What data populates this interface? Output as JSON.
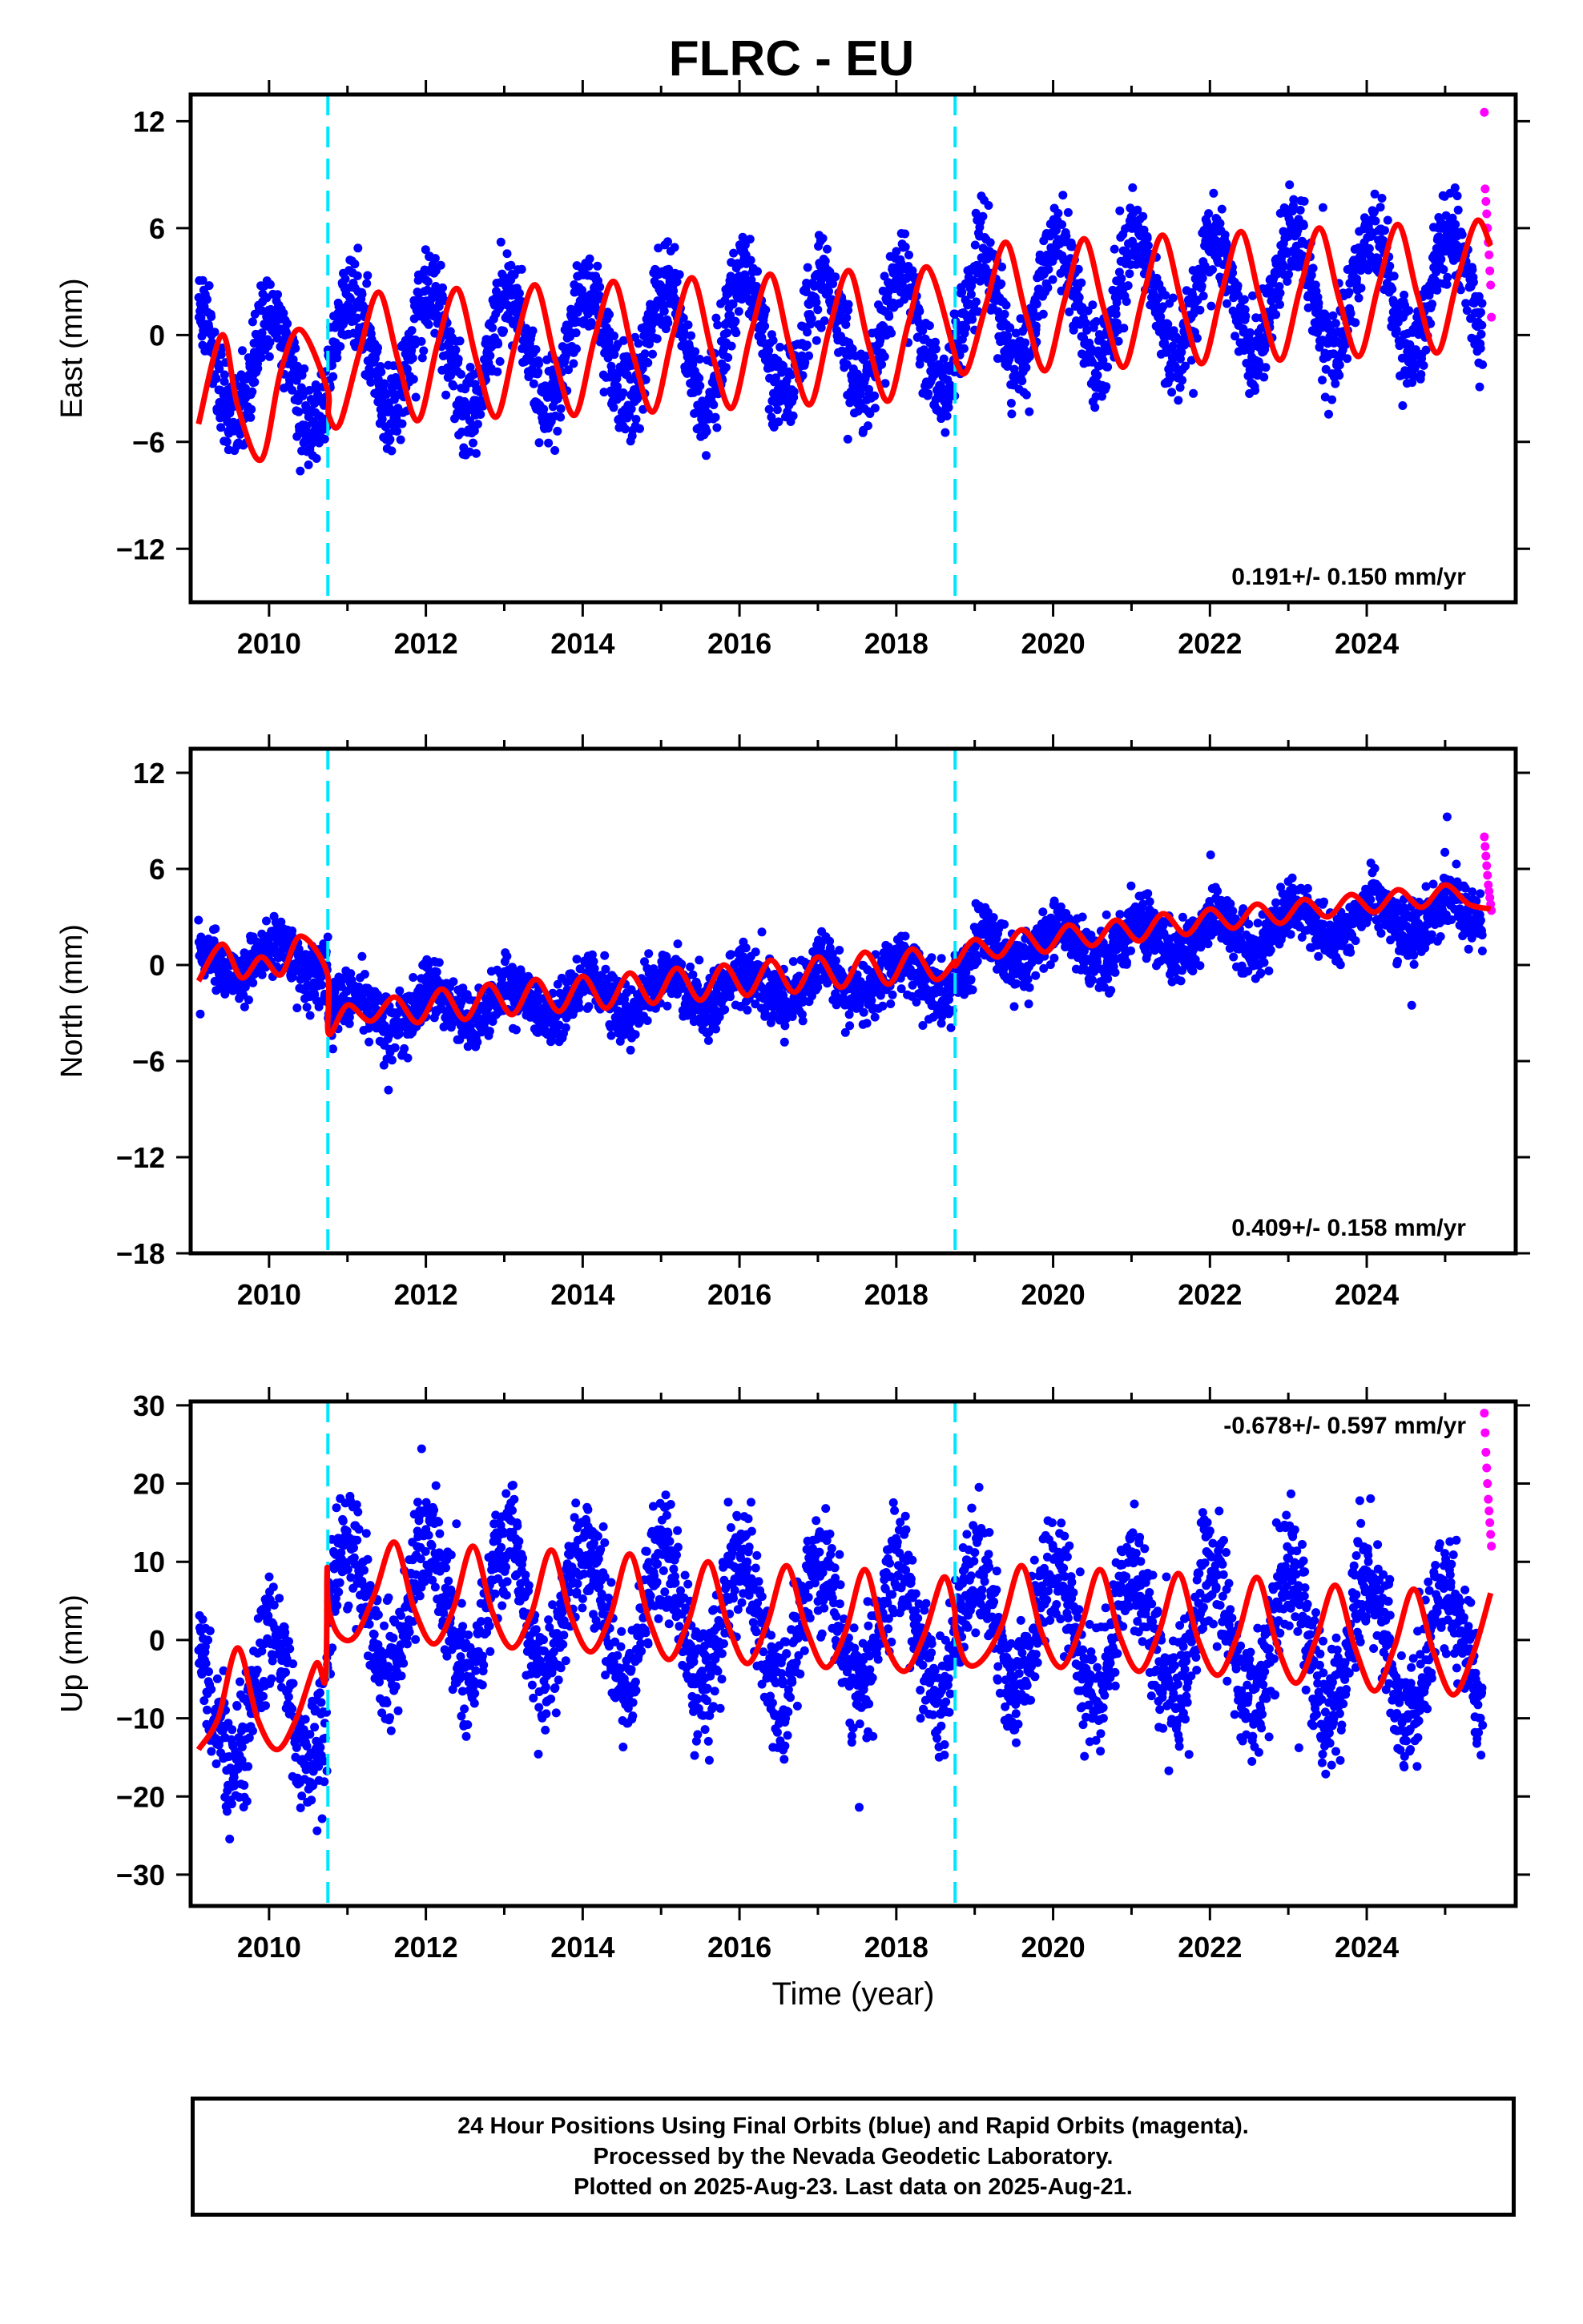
{
  "title": "FLRC - EU",
  "footer": {
    "lines": [
      "24 Hour Positions Using Final Orbits (blue) and Rapid Orbits (magenta).",
      "Processed by the Nevada Geodetic Laboratory.",
      "Plotted on 2025-Aug-23. Last data on 2025-Aug-21."
    ]
  },
  "colors": {
    "final_orbits": "#0000ff",
    "rapid_orbits": "#ff00ff",
    "model_fit": "#ff0000",
    "offset_line": "#00e5ff",
    "axis": "#000000"
  },
  "chart_data": [
    {
      "type": "scatter",
      "ylabel": "East (mm)",
      "xlabel": "",
      "xlim": [
        2009.0,
        2025.9
      ],
      "ylim": [
        -15,
        13.5
      ],
      "x_ticks": [
        2010,
        2012,
        2014,
        2016,
        2018,
        2020,
        2022,
        2024
      ],
      "y_ticks": [
        -12,
        -6,
        0,
        6,
        12
      ],
      "y_tick_labels": [
        "−12",
        "−6",
        "0",
        "6",
        "12"
      ],
      "rate_text": "0.191+/- 0.150 mm/yr",
      "rate_position": "bottom-right",
      "offsets": [
        2010.75,
        2018.75
      ],
      "series": [
        {
          "role": "final",
          "x_range": [
            2009.1,
            2025.48
          ],
          "model": {
            "base": [
              -1.3,
              -2.0,
              -1.0,
              -1.0,
              -0.6,
              -0.5,
              -0.3,
              -0.2,
              0.0,
              0.3,
              1.7,
              1.9,
              2.0,
              2.2,
              2.4,
              2.5,
              2.7
            ],
            "amp": 3.3,
            "phase": 1.2,
            "noise": 1.8
          }
        },
        {
          "role": "rapid",
          "x": [
            2025.5,
            2025.51,
            2025.52,
            2025.53,
            2025.54,
            2025.55,
            2025.56,
            2025.57,
            2025.58,
            2025.59
          ],
          "y": [
            12.5,
            8.2,
            7.5,
            6.8,
            6.0,
            5.2,
            4.5,
            3.6,
            2.8,
            1.0
          ]
        },
        {
          "role": "fit",
          "x": [
            2009.1,
            2009.4,
            2009.6,
            2009.9,
            2010.15,
            2010.4,
            2010.74,
            2010.76,
            2010.9,
            2011.15,
            2011.4,
            2011.65,
            2011.9,
            2012.15,
            2012.4,
            2012.65,
            2012.9,
            2013.15,
            2013.4,
            2013.65,
            2013.9,
            2014.15,
            2014.4,
            2014.65,
            2014.9,
            2015.15,
            2015.4,
            2015.65,
            2015.9,
            2016.15,
            2016.4,
            2016.65,
            2016.9,
            2017.15,
            2017.4,
            2017.65,
            2017.9,
            2018.15,
            2018.4,
            2018.74,
            2018.76,
            2018.9,
            2019.15,
            2019.4,
            2019.65,
            2019.9,
            2020.15,
            2020.4,
            2020.65,
            2020.9,
            2021.15,
            2021.4,
            2021.65,
            2021.9,
            2022.15,
            2022.4,
            2022.65,
            2022.9,
            2023.15,
            2023.4,
            2023.65,
            2023.9,
            2024.15,
            2024.4,
            2024.65,
            2024.9,
            2025.15,
            2025.4,
            2025.58
          ],
          "y": [
            -5.0,
            0.0,
            -4.0,
            -7.0,
            -2.0,
            0.3,
            -3.0,
            -4.5,
            -5.0,
            -1.0,
            2.4,
            -1.5,
            -4.8,
            -0.5,
            2.6,
            -1.5,
            -4.6,
            -0.3,
            2.8,
            -1.4,
            -4.5,
            -0.2,
            3.0,
            -1.2,
            -4.3,
            0.0,
            3.2,
            -1.0,
            -4.1,
            0.2,
            3.4,
            -0.8,
            -3.9,
            0.4,
            3.6,
            -0.6,
            -3.7,
            0.6,
            3.8,
            -1.0,
            -1.5,
            -2.0,
            1.8,
            5.2,
            1.2,
            -2.0,
            2.0,
            5.4,
            1.4,
            -1.8,
            2.2,
            5.6,
            1.6,
            -1.6,
            2.4,
            5.8,
            1.8,
            -1.4,
            2.6,
            6.0,
            2.0,
            -1.2,
            2.8,
            6.2,
            2.2,
            -1.0,
            3.0,
            6.4,
            5.0
          ]
        }
      ]
    },
    {
      "type": "scatter",
      "ylabel": "North (mm)",
      "xlabel": "",
      "xlim": [
        2009.0,
        2025.9
      ],
      "ylim": [
        -18,
        13.5
      ],
      "x_ticks": [
        2010,
        2012,
        2014,
        2016,
        2018,
        2020,
        2022,
        2024
      ],
      "y_ticks": [
        -18,
        -12,
        -6,
        0,
        6,
        12
      ],
      "y_tick_labels": [
        "−18",
        "−12",
        "−6",
        "0",
        "6",
        "12"
      ],
      "rate_text": "0.409+/- 0.158 mm/yr",
      "rate_position": "bottom-right",
      "offsets": [
        2010.75,
        2018.75
      ],
      "series": [
        {
          "role": "final",
          "x_range": [
            2009.1,
            2025.48
          ],
          "model": {
            "base": [
              0.2,
              0.3,
              -2.8,
              -2.5,
              -2.2,
              -1.9,
              -1.6,
              -1.3,
              -1.0,
              -0.7,
              1.0,
              1.3,
              1.7,
              2.1,
              2.6,
              3.0,
              3.3
            ],
            "amp": 1.1,
            "phase": 1.2,
            "noise": 1.3
          }
        },
        {
          "role": "rapid",
          "x": [
            2025.5,
            2025.51,
            2025.52,
            2025.53,
            2025.54,
            2025.55,
            2025.56,
            2025.57,
            2025.58,
            2025.59
          ],
          "y": [
            8.0,
            7.4,
            6.8,
            6.2,
            5.6,
            5.0,
            4.6,
            4.2,
            3.8,
            3.4
          ]
        },
        {
          "role": "fit",
          "x": [
            2009.1,
            2009.4,
            2009.65,
            2009.9,
            2010.15,
            2010.4,
            2010.74,
            2010.76,
            2011.0,
            2011.3,
            2011.6,
            2011.9,
            2012.2,
            2012.5,
            2012.8,
            2013.1,
            2013.4,
            2013.7,
            2014.0,
            2014.3,
            2014.6,
            2014.9,
            2015.2,
            2015.5,
            2015.8,
            2016.1,
            2016.4,
            2016.7,
            2017.0,
            2017.3,
            2017.6,
            2017.9,
            2018.2,
            2018.5,
            2018.74,
            2018.76,
            2019.0,
            2019.3,
            2019.6,
            2019.9,
            2020.2,
            2020.5,
            2020.8,
            2021.1,
            2021.4,
            2021.7,
            2022.0,
            2022.3,
            2022.6,
            2022.9,
            2023.2,
            2023.5,
            2023.8,
            2024.1,
            2024.4,
            2024.7,
            2025.0,
            2025.3,
            2025.58
          ],
          "y": [
            -1.0,
            1.3,
            -0.8,
            0.5,
            -0.6,
            1.8,
            -0.5,
            -4.3,
            -2.5,
            -3.5,
            -2.0,
            -3.6,
            -1.5,
            -3.4,
            -1.2,
            -3.1,
            -0.9,
            -2.9,
            -0.7,
            -2.7,
            -0.5,
            -2.4,
            -0.2,
            -2.2,
            0.0,
            -1.9,
            0.3,
            -1.7,
            0.5,
            -1.4,
            0.8,
            -1.2,
            1.0,
            -0.9,
            0.2,
            0.0,
            1.6,
            0.5,
            2.2,
            0.8,
            2.5,
            1.2,
            2.8,
            1.5,
            3.2,
            1.9,
            3.5,
            2.3,
            3.8,
            2.6,
            4.1,
            3.0,
            4.4,
            3.3,
            4.7,
            3.6,
            5.0,
            3.8,
            3.5
          ]
        }
      ]
    },
    {
      "type": "scatter",
      "ylabel": "Up (mm)",
      "xlabel": "Time (year)",
      "xlim": [
        2009.0,
        2025.9
      ],
      "ylim": [
        -34,
        30.5
      ],
      "x_ticks": [
        2010,
        2012,
        2014,
        2016,
        2018,
        2020,
        2022,
        2024
      ],
      "y_ticks": [
        -30,
        -20,
        -10,
        0,
        10,
        20,
        30
      ],
      "y_tick_labels": [
        "−30",
        "−20",
        "−10",
        "0",
        "10",
        "20",
        "30"
      ],
      "rate_text": "-0.678+/- 0.597 mm/yr",
      "rate_position": "top-right",
      "offsets": [
        2010.75,
        2018.75
      ],
      "series": [
        {
          "role": "final",
          "x_range": [
            2009.1,
            2025.48
          ],
          "model": {
            "base": [
              -8.0,
              -7.0,
              4.0,
              4.0,
              4.0,
              3.0,
              2.5,
              2.0,
              1.5,
              1.0,
              1.5,
              1.0,
              0.5,
              0.0,
              -0.5,
              -1.0,
              -1.5
            ],
            "amp": 8.5,
            "phase": 1.4,
            "noise": 5.5
          }
        },
        {
          "role": "rapid",
          "x": [
            2025.5,
            2025.51,
            2025.52,
            2025.53,
            2025.54,
            2025.55,
            2025.56,
            2025.57,
            2025.58,
            2025.59
          ],
          "y": [
            29.0,
            26.5,
            24.0,
            22.0,
            20.0,
            18.0,
            16.5,
            15.0,
            13.5,
            12.0
          ]
        },
        {
          "role": "fit",
          "x": [
            2009.1,
            2009.35,
            2009.6,
            2009.85,
            2010.1,
            2010.35,
            2010.6,
            2010.72,
            2010.74,
            2010.76,
            2010.9,
            2011.1,
            2011.35,
            2011.6,
            2011.85,
            2012.1,
            2012.35,
            2012.6,
            2012.85,
            2013.1,
            2013.35,
            2013.6,
            2013.85,
            2014.1,
            2014.35,
            2014.6,
            2014.85,
            2015.1,
            2015.35,
            2015.6,
            2015.85,
            2016.1,
            2016.35,
            2016.6,
            2016.85,
            2017.1,
            2017.35,
            2017.6,
            2017.85,
            2018.1,
            2018.35,
            2018.6,
            2018.74,
            2018.76,
            2018.9,
            2019.1,
            2019.35,
            2019.6,
            2019.85,
            2020.1,
            2020.35,
            2020.6,
            2020.85,
            2021.1,
            2021.35,
            2021.6,
            2021.85,
            2022.1,
            2022.35,
            2022.6,
            2022.85,
            2023.1,
            2023.35,
            2023.6,
            2023.85,
            2024.1,
            2024.35,
            2024.6,
            2024.85,
            2025.1,
            2025.35,
            2025.58
          ],
          "y": [
            -14.0,
            -10.0,
            -1.0,
            -10.0,
            -14.0,
            -10.0,
            -3.0,
            -5.0,
            9.0,
            4.0,
            0.5,
            0.5,
            6.0,
            12.5,
            4.0,
            -0.5,
            4.0,
            12.0,
            3.5,
            -1.0,
            3.5,
            11.5,
            3.0,
            -1.5,
            3.0,
            11.0,
            2.5,
            -2.5,
            2.5,
            10.0,
            2.0,
            -3.0,
            2.0,
            9.5,
            1.5,
            -3.5,
            1.0,
            9.0,
            0.0,
            -4.0,
            0.5,
            8.0,
            4.0,
            1.0,
            -3.0,
            -2.5,
            2.0,
            9.5,
            1.0,
            -3.5,
            1.5,
            9.0,
            0.5,
            -4.0,
            1.0,
            8.5,
            0.0,
            -4.5,
            0.5,
            8.0,
            -0.5,
            -5.5,
            0.0,
            7.0,
            -1.0,
            -6.5,
            -1.0,
            6.5,
            -1.5,
            -7.0,
            -2.0,
            6.0
          ]
        }
      ]
    }
  ]
}
